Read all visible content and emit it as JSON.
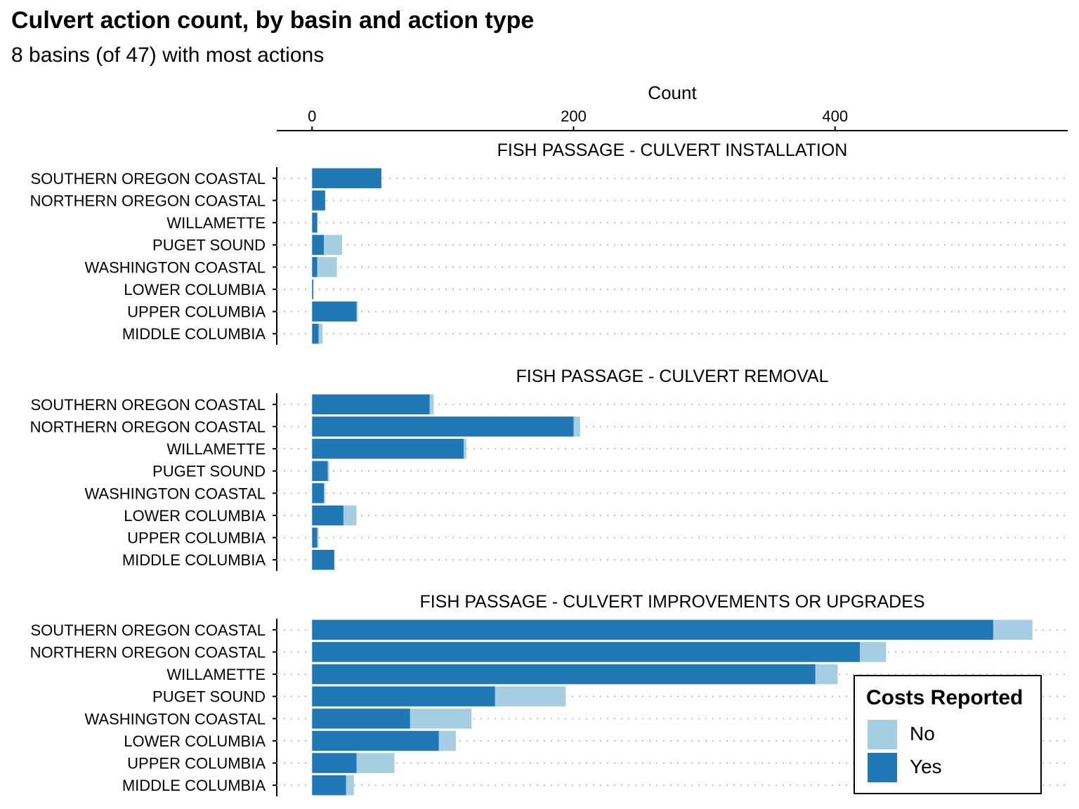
{
  "chart_data": {
    "type": "bar",
    "orientation": "horizontal",
    "stacked": true,
    "title": "Culvert action count, by basin and action type",
    "subtitle": "8 basins (of 47) with most actions",
    "xlabel": "Count",
    "x_axis_position": "top",
    "xticks": [
      0,
      200,
      400
    ],
    "xlim": [
      -27,
      578
    ],
    "grid": "dotted horizontal",
    "legend": {
      "title": "Costs Reported",
      "placement": "bottom-right"
    },
    "categories": [
      "SOUTHERN OREGON COASTAL",
      "NORTHERN OREGON COASTAL",
      "WILLAMETTE",
      "PUGET SOUND",
      "WASHINGTON COASTAL",
      "LOWER COLUMBIA",
      "UPPER COLUMBIA",
      "MIDDLE COLUMBIA"
    ],
    "series": [
      {
        "name": "Yes",
        "color": "#1f78b4"
      },
      {
        "name": "No",
        "color": "#a6cee3"
      }
    ],
    "panels": [
      {
        "label": "FISH PASSAGE - CULVERT INSTALLATION",
        "yes": [
          53,
          10,
          4,
          9,
          4,
          1,
          34,
          5
        ],
        "no": [
          0,
          0,
          0,
          14,
          15,
          0,
          1,
          3
        ]
      },
      {
        "label": "FISH PASSAGE - CULVERT REMOVAL",
        "yes": [
          90,
          200,
          116,
          12,
          9,
          24,
          4,
          17
        ],
        "no": [
          3,
          5,
          2,
          1,
          1,
          10,
          1,
          0
        ]
      },
      {
        "label": "FISH PASSAGE - CULVERT IMPROVEMENTS OR UPGRADES",
        "yes": [
          521,
          419,
          385,
          140,
          75,
          97,
          34,
          26
        ],
        "no": [
          30,
          20,
          17,
          54,
          47,
          13,
          29,
          6
        ]
      }
    ]
  }
}
